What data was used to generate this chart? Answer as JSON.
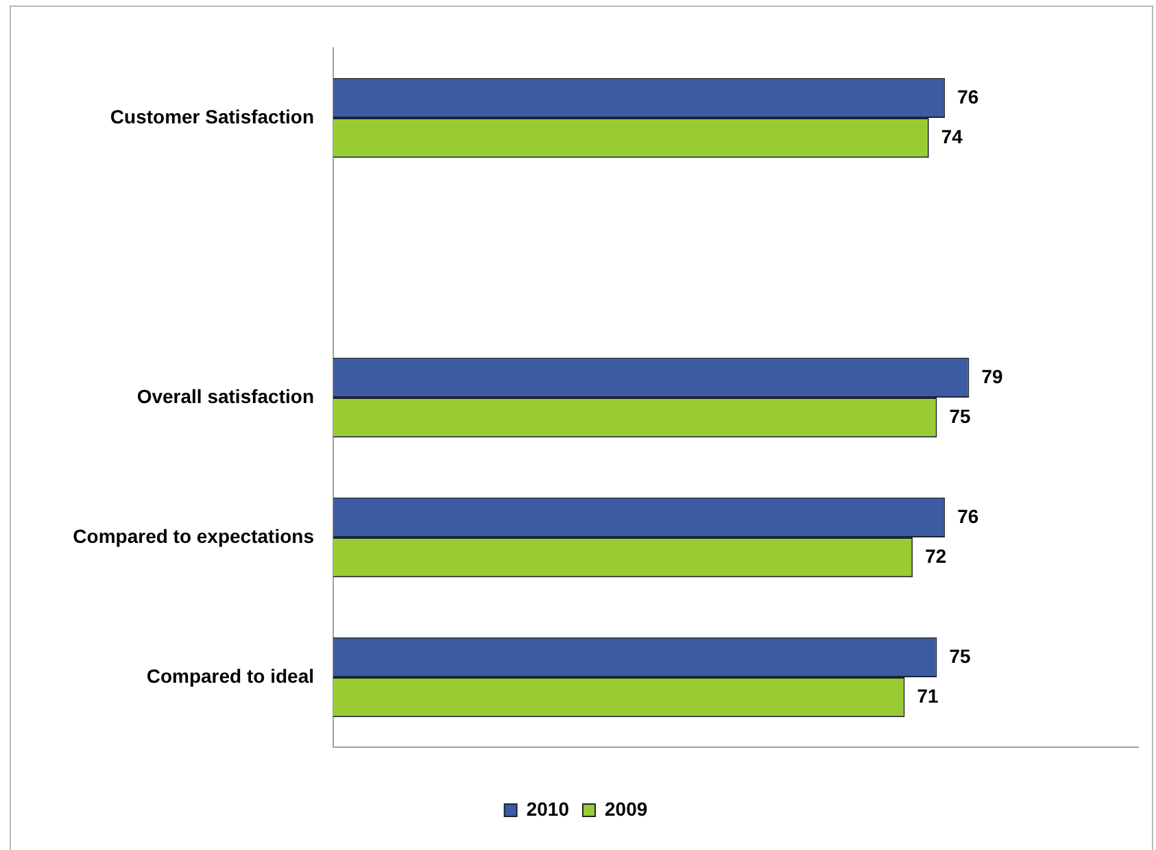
{
  "chart_data": {
    "type": "bar",
    "orientation": "horizontal",
    "categories": [
      "Customer Satisfaction",
      null,
      "Overall satisfaction",
      "Compared to expectations",
      "Compared to ideal"
    ],
    "series": [
      {
        "name": "2010",
        "color": "#3c5ba2",
        "values": [
          76,
          null,
          79,
          76,
          75
        ]
      },
      {
        "name": "2009",
        "color": "#99cc33",
        "values": [
          74,
          null,
          75,
          72,
          71
        ]
      }
    ],
    "xlim": [
      0,
      100
    ],
    "data_labels": true,
    "legend": "bottom",
    "tick_labels": "y"
  }
}
